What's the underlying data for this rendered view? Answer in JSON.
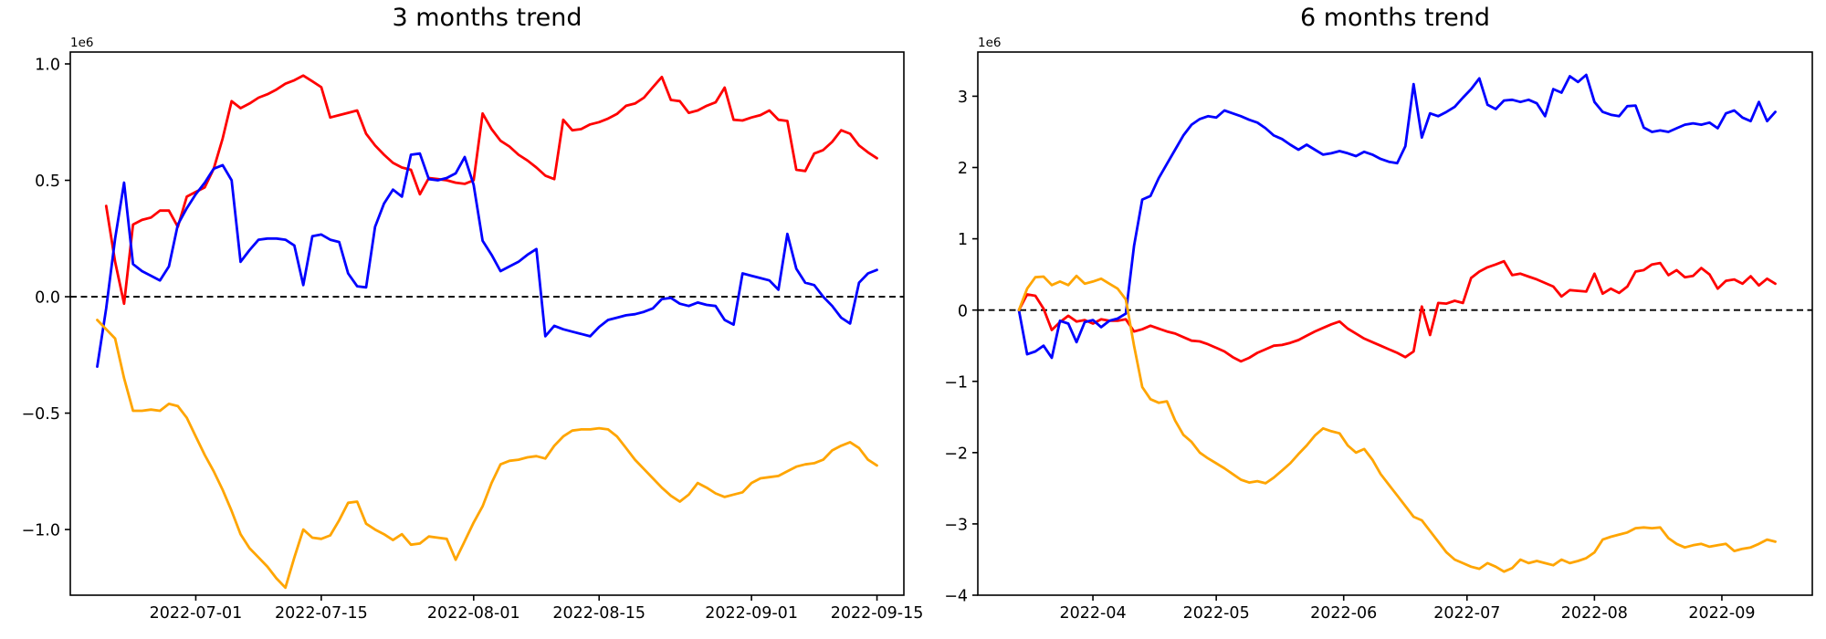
{
  "figure": {
    "background": "#ffffff"
  },
  "chart_data": [
    {
      "type": "line",
      "title": "3 months trend",
      "y_offset_text": "1e6",
      "y_unit_multiplier": 1000000,
      "xlim": [
        "2022-06-17",
        "2022-09-18"
      ],
      "ylim": [
        -1.282,
        1.051
      ],
      "x_tick_values": [
        "2022-07-01",
        "2022-07-15",
        "2022-08-01",
        "2022-08-15",
        "2022-09-01",
        "2022-09-15"
      ],
      "x_tick_labels": [
        "2022-07-01",
        "2022-07-15",
        "2022-08-01",
        "2022-08-15",
        "2022-09-01",
        "2022-09-15"
      ],
      "y_tick_values": [
        1.0,
        0.5,
        0.0,
        -0.5,
        -1.0
      ],
      "y_tick_labels": [
        "1.0",
        "0.5",
        "0.0",
        "−0.5",
        "−1.0"
      ],
      "zero_line": {
        "style": "dashed",
        "color": "#000000"
      },
      "grid": false,
      "legend": null,
      "x_start": "2022-06-20",
      "x_step_days": 1,
      "series": [
        {
          "name": "red-line",
          "color": "#ff0000",
          "values": [
            null,
            0.39,
            0.15,
            -0.03,
            0.31,
            0.33,
            0.34,
            0.37,
            0.37,
            0.3,
            0.43,
            0.45,
            0.47,
            0.55,
            0.68,
            0.84,
            0.81,
            0.83,
            0.855,
            0.87,
            0.89,
            0.915,
            0.93,
            0.95,
            0.925,
            0.9,
            0.77,
            0.78,
            0.79,
            0.8,
            0.7,
            0.65,
            0.61,
            0.575,
            0.555,
            0.545,
            0.44,
            0.51,
            0.505,
            0.5,
            0.49,
            0.485,
            0.5,
            0.787,
            0.72,
            0.67,
            0.645,
            0.61,
            0.585,
            0.555,
            0.52,
            0.505,
            0.76,
            0.715,
            0.72,
            0.74,
            0.75,
            0.765,
            0.785,
            0.82,
            0.83,
            0.855,
            0.9,
            0.944,
            0.845,
            0.84,
            0.79,
            0.8,
            0.82,
            0.835,
            0.898,
            0.76,
            0.757,
            0.77,
            0.78,
            0.8,
            0.76,
            0.755,
            0.545,
            0.54,
            0.615,
            0.63,
            0.665,
            0.715,
            0.7,
            0.65,
            0.62,
            0.595
          ]
        },
        {
          "name": "blue-line",
          "color": "#0000ff",
          "values": [
            -0.3,
            -0.05,
            0.25,
            0.49,
            0.14,
            0.11,
            0.09,
            0.07,
            0.13,
            0.31,
            0.38,
            0.44,
            0.49,
            0.55,
            0.565,
            0.5,
            0.15,
            0.2,
            0.245,
            0.25,
            0.25,
            0.245,
            0.22,
            0.05,
            0.26,
            0.267,
            0.245,
            0.235,
            0.1,
            0.045,
            0.04,
            0.3,
            0.4,
            0.46,
            0.43,
            0.61,
            0.615,
            0.505,
            0.5,
            0.51,
            0.53,
            0.6,
            0.48,
            0.24,
            0.18,
            0.11,
            0.13,
            0.15,
            0.18,
            0.205,
            -0.17,
            -0.125,
            -0.14,
            -0.15,
            -0.16,
            -0.17,
            -0.13,
            -0.1,
            -0.09,
            -0.08,
            -0.075,
            -0.065,
            -0.05,
            -0.01,
            -0.005,
            -0.03,
            -0.04,
            -0.025,
            -0.035,
            -0.04,
            -0.1,
            -0.12,
            0.1,
            0.09,
            0.08,
            0.07,
            0.03,
            0.27,
            0.12,
            0.06,
            0.05,
            0.0,
            -0.04,
            -0.09,
            -0.115,
            0.06,
            0.1,
            0.115
          ]
        },
        {
          "name": "orange-line",
          "color": "#ffa500",
          "values": [
            -0.1,
            -0.14,
            -0.18,
            -0.35,
            -0.49,
            -0.49,
            -0.485,
            -0.49,
            -0.46,
            -0.47,
            -0.52,
            -0.6,
            -0.68,
            -0.75,
            -0.83,
            -0.92,
            -1.02,
            -1.08,
            -1.12,
            -1.16,
            -1.21,
            -1.25,
            -1.12,
            -1.0,
            -1.035,
            -1.04,
            -1.025,
            -0.96,
            -0.885,
            -0.88,
            -0.975,
            -1.0,
            -1.02,
            -1.045,
            -1.02,
            -1.065,
            -1.06,
            -1.03,
            -1.035,
            -1.04,
            -1.13,
            -1.05,
            -0.97,
            -0.9,
            -0.8,
            -0.72,
            -0.705,
            -0.7,
            -0.69,
            -0.685,
            -0.695,
            -0.64,
            -0.6,
            -0.575,
            -0.57,
            -0.57,
            -0.565,
            -0.57,
            -0.6,
            -0.65,
            -0.7,
            -0.74,
            -0.78,
            -0.82,
            -0.855,
            -0.88,
            -0.85,
            -0.8,
            -0.82,
            -0.845,
            -0.86,
            -0.85,
            -0.84,
            -0.8,
            -0.78,
            -0.775,
            -0.77,
            -0.75,
            -0.73,
            -0.72,
            -0.715,
            -0.7,
            -0.66,
            -0.64,
            -0.625,
            -0.65,
            -0.7,
            -0.725
          ]
        }
      ]
    },
    {
      "type": "line",
      "title": "6 months trend",
      "y_offset_text": "1e6",
      "y_unit_multiplier": 1000000,
      "xlim": [
        "2022-03-04",
        "2022-09-23"
      ],
      "ylim": [
        -4.0,
        3.62
      ],
      "x_tick_values": [
        "2022-04-01",
        "2022-05-01",
        "2022-06-01",
        "2022-07-01",
        "2022-08-01",
        "2022-09-01"
      ],
      "x_tick_labels": [
        "2022-04",
        "2022-05",
        "2022-06",
        "2022-07",
        "2022-08",
        "2022-09"
      ],
      "y_tick_values": [
        3,
        2,
        1,
        0,
        -1,
        -2,
        -3,
        -4
      ],
      "y_tick_labels": [
        "3",
        "2",
        "1",
        "0",
        "−1",
        "−2",
        "−3",
        "−4"
      ],
      "zero_line": {
        "style": "dashed",
        "color": "#000000"
      },
      "grid": false,
      "legend": null,
      "x_start": "2022-03-14",
      "x_step_days": 2,
      "series": [
        {
          "name": "red-line",
          "color": "#ff0000",
          "values": [
            0.0,
            0.22,
            0.2,
            0.02,
            -0.28,
            -0.17,
            -0.08,
            -0.16,
            -0.14,
            -0.19,
            -0.13,
            -0.15,
            -0.15,
            -0.13,
            -0.3,
            -0.27,
            -0.22,
            -0.26,
            -0.3,
            -0.33,
            -0.38,
            -0.43,
            -0.44,
            -0.48,
            -0.53,
            -0.58,
            -0.66,
            -0.72,
            -0.67,
            -0.6,
            -0.55,
            -0.5,
            -0.49,
            -0.46,
            -0.42,
            -0.36,
            -0.3,
            -0.25,
            -0.2,
            -0.16,
            -0.26,
            -0.33,
            -0.4,
            -0.45,
            -0.5,
            -0.55,
            -0.6,
            -0.66,
            -0.58,
            0.05,
            -0.35,
            0.1,
            0.09,
            0.13,
            0.1,
            0.45,
            0.54,
            0.6,
            0.64,
            0.685,
            0.49,
            0.51,
            0.47,
            0.43,
            0.38,
            0.33,
            0.19,
            0.28,
            0.27,
            0.26,
            0.51,
            0.23,
            0.3,
            0.24,
            0.33,
            0.54,
            0.56,
            0.64,
            0.66,
            0.49,
            0.56,
            0.46,
            0.48,
            0.59,
            0.5,
            0.3,
            0.41,
            0.43,
            0.37,
            0.475,
            0.345,
            0.44,
            0.37
          ]
        },
        {
          "name": "blue-line",
          "color": "#0000ff",
          "values": [
            0.0,
            -0.62,
            -0.58,
            -0.5,
            -0.67,
            -0.15,
            -0.19,
            -0.45,
            -0.17,
            -0.14,
            -0.24,
            -0.15,
            -0.12,
            -0.05,
            0.9,
            1.55,
            1.6,
            1.85,
            2.05,
            2.25,
            2.45,
            2.6,
            2.68,
            2.72,
            2.7,
            2.8,
            2.76,
            2.72,
            2.67,
            2.63,
            2.55,
            2.45,
            2.4,
            2.32,
            2.25,
            2.32,
            2.25,
            2.18,
            2.2,
            2.23,
            2.2,
            2.16,
            2.22,
            2.18,
            2.12,
            2.08,
            2.06,
            2.3,
            3.17,
            2.42,
            2.76,
            2.72,
            2.78,
            2.85,
            2.98,
            3.1,
            3.25,
            2.88,
            2.82,
            2.94,
            2.95,
            2.92,
            2.95,
            2.9,
            2.72,
            3.1,
            3.05,
            3.28,
            3.2,
            3.3,
            2.92,
            2.78,
            2.74,
            2.72,
            2.86,
            2.87,
            2.56,
            2.5,
            2.52,
            2.5,
            2.55,
            2.6,
            2.62,
            2.6,
            2.63,
            2.55,
            2.76,
            2.8,
            2.7,
            2.65,
            2.92,
            2.65,
            2.78
          ]
        },
        {
          "name": "orange-line",
          "color": "#ffa500",
          "values": [
            0.0,
            0.3,
            0.46,
            0.47,
            0.35,
            0.4,
            0.35,
            0.48,
            0.37,
            0.4,
            0.44,
            0.37,
            0.3,
            0.15,
            -0.5,
            -1.08,
            -1.25,
            -1.3,
            -1.28,
            -1.55,
            -1.75,
            -1.85,
            -2.0,
            -2.08,
            -2.15,
            -2.22,
            -2.3,
            -2.38,
            -2.42,
            -2.4,
            -2.43,
            -2.35,
            -2.25,
            -2.15,
            -2.02,
            -1.9,
            -1.76,
            -1.66,
            -1.7,
            -1.73,
            -1.9,
            -2.0,
            -1.95,
            -2.1,
            -2.3,
            -2.45,
            -2.6,
            -2.75,
            -2.9,
            -2.95,
            -3.1,
            -3.25,
            -3.4,
            -3.5,
            -3.55,
            -3.6,
            -3.63,
            -3.55,
            -3.6,
            -3.67,
            -3.62,
            -3.5,
            -3.55,
            -3.52,
            -3.55,
            -3.58,
            -3.5,
            -3.55,
            -3.52,
            -3.48,
            -3.4,
            -3.22,
            -3.18,
            -3.15,
            -3.12,
            -3.06,
            -3.05,
            -3.06,
            -3.05,
            -3.2,
            -3.28,
            -3.33,
            -3.3,
            -3.28,
            -3.32,
            -3.3,
            -3.28,
            -3.38,
            -3.35,
            -3.33,
            -3.28,
            -3.22,
            -3.25
          ]
        }
      ]
    }
  ]
}
